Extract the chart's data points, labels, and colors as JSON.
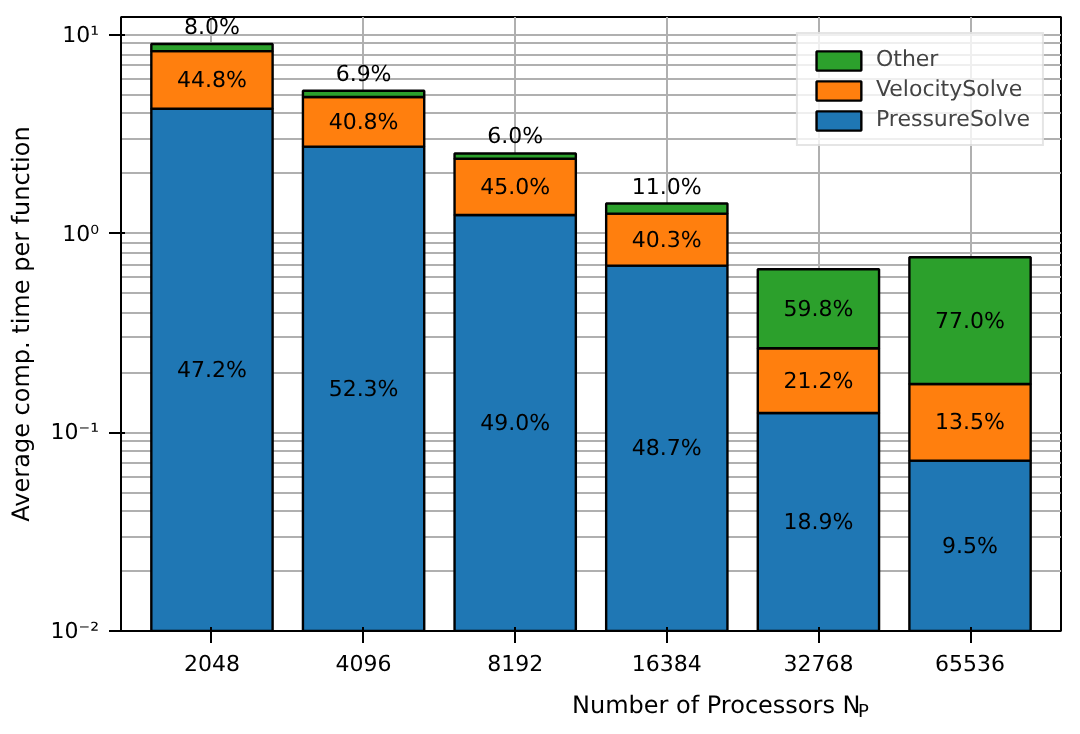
{
  "chart_data": {
    "type": "bar",
    "stacked": true,
    "log": "y",
    "xlabel": "Number of Processors N$_{P}$",
    "ylabel": "Average comp. time per function",
    "categories": [
      "2048",
      "4096",
      "8192",
      "16384",
      "32768",
      "65536"
    ],
    "series": [
      {
        "name": "PressureSolve",
        "color": "#1f77b4",
        "values": [
          4.25,
          2.74,
          1.24,
          0.69,
          0.125,
          0.072
        ]
      },
      {
        "name": "VelocitySolve",
        "color": "#ff7f0e",
        "values": [
          4.03,
          2.13,
          1.14,
          0.57,
          0.14,
          0.103
        ]
      },
      {
        "name": "Other",
        "color": "#2ca02c",
        "values": [
          0.72,
          0.36,
          0.15,
          0.156,
          0.396,
          0.585
        ]
      }
    ],
    "annotations": [
      "47.2%",
      "52.3%",
      "49.0%",
      "48.7%",
      "18.9%",
      "9.5%",
      "44.8%",
      "40.8%",
      "45.0%",
      "40.3%",
      "21.2%",
      "13.5%",
      "8.0%",
      "6.9%",
      "6.0%",
      "11.0%",
      "59.8%",
      "77.0%"
    ],
    "ylim": [
      0.01,
      12.3
    ],
    "yticks": [
      {
        "value": 0.01,
        "label": "10⁻²"
      },
      {
        "value": 0.1,
        "label": "10⁻¹"
      },
      {
        "value": 1,
        "label": "10⁰"
      },
      {
        "value": 10,
        "label": "10¹"
      }
    ],
    "grid": true,
    "legend": "top right"
  }
}
